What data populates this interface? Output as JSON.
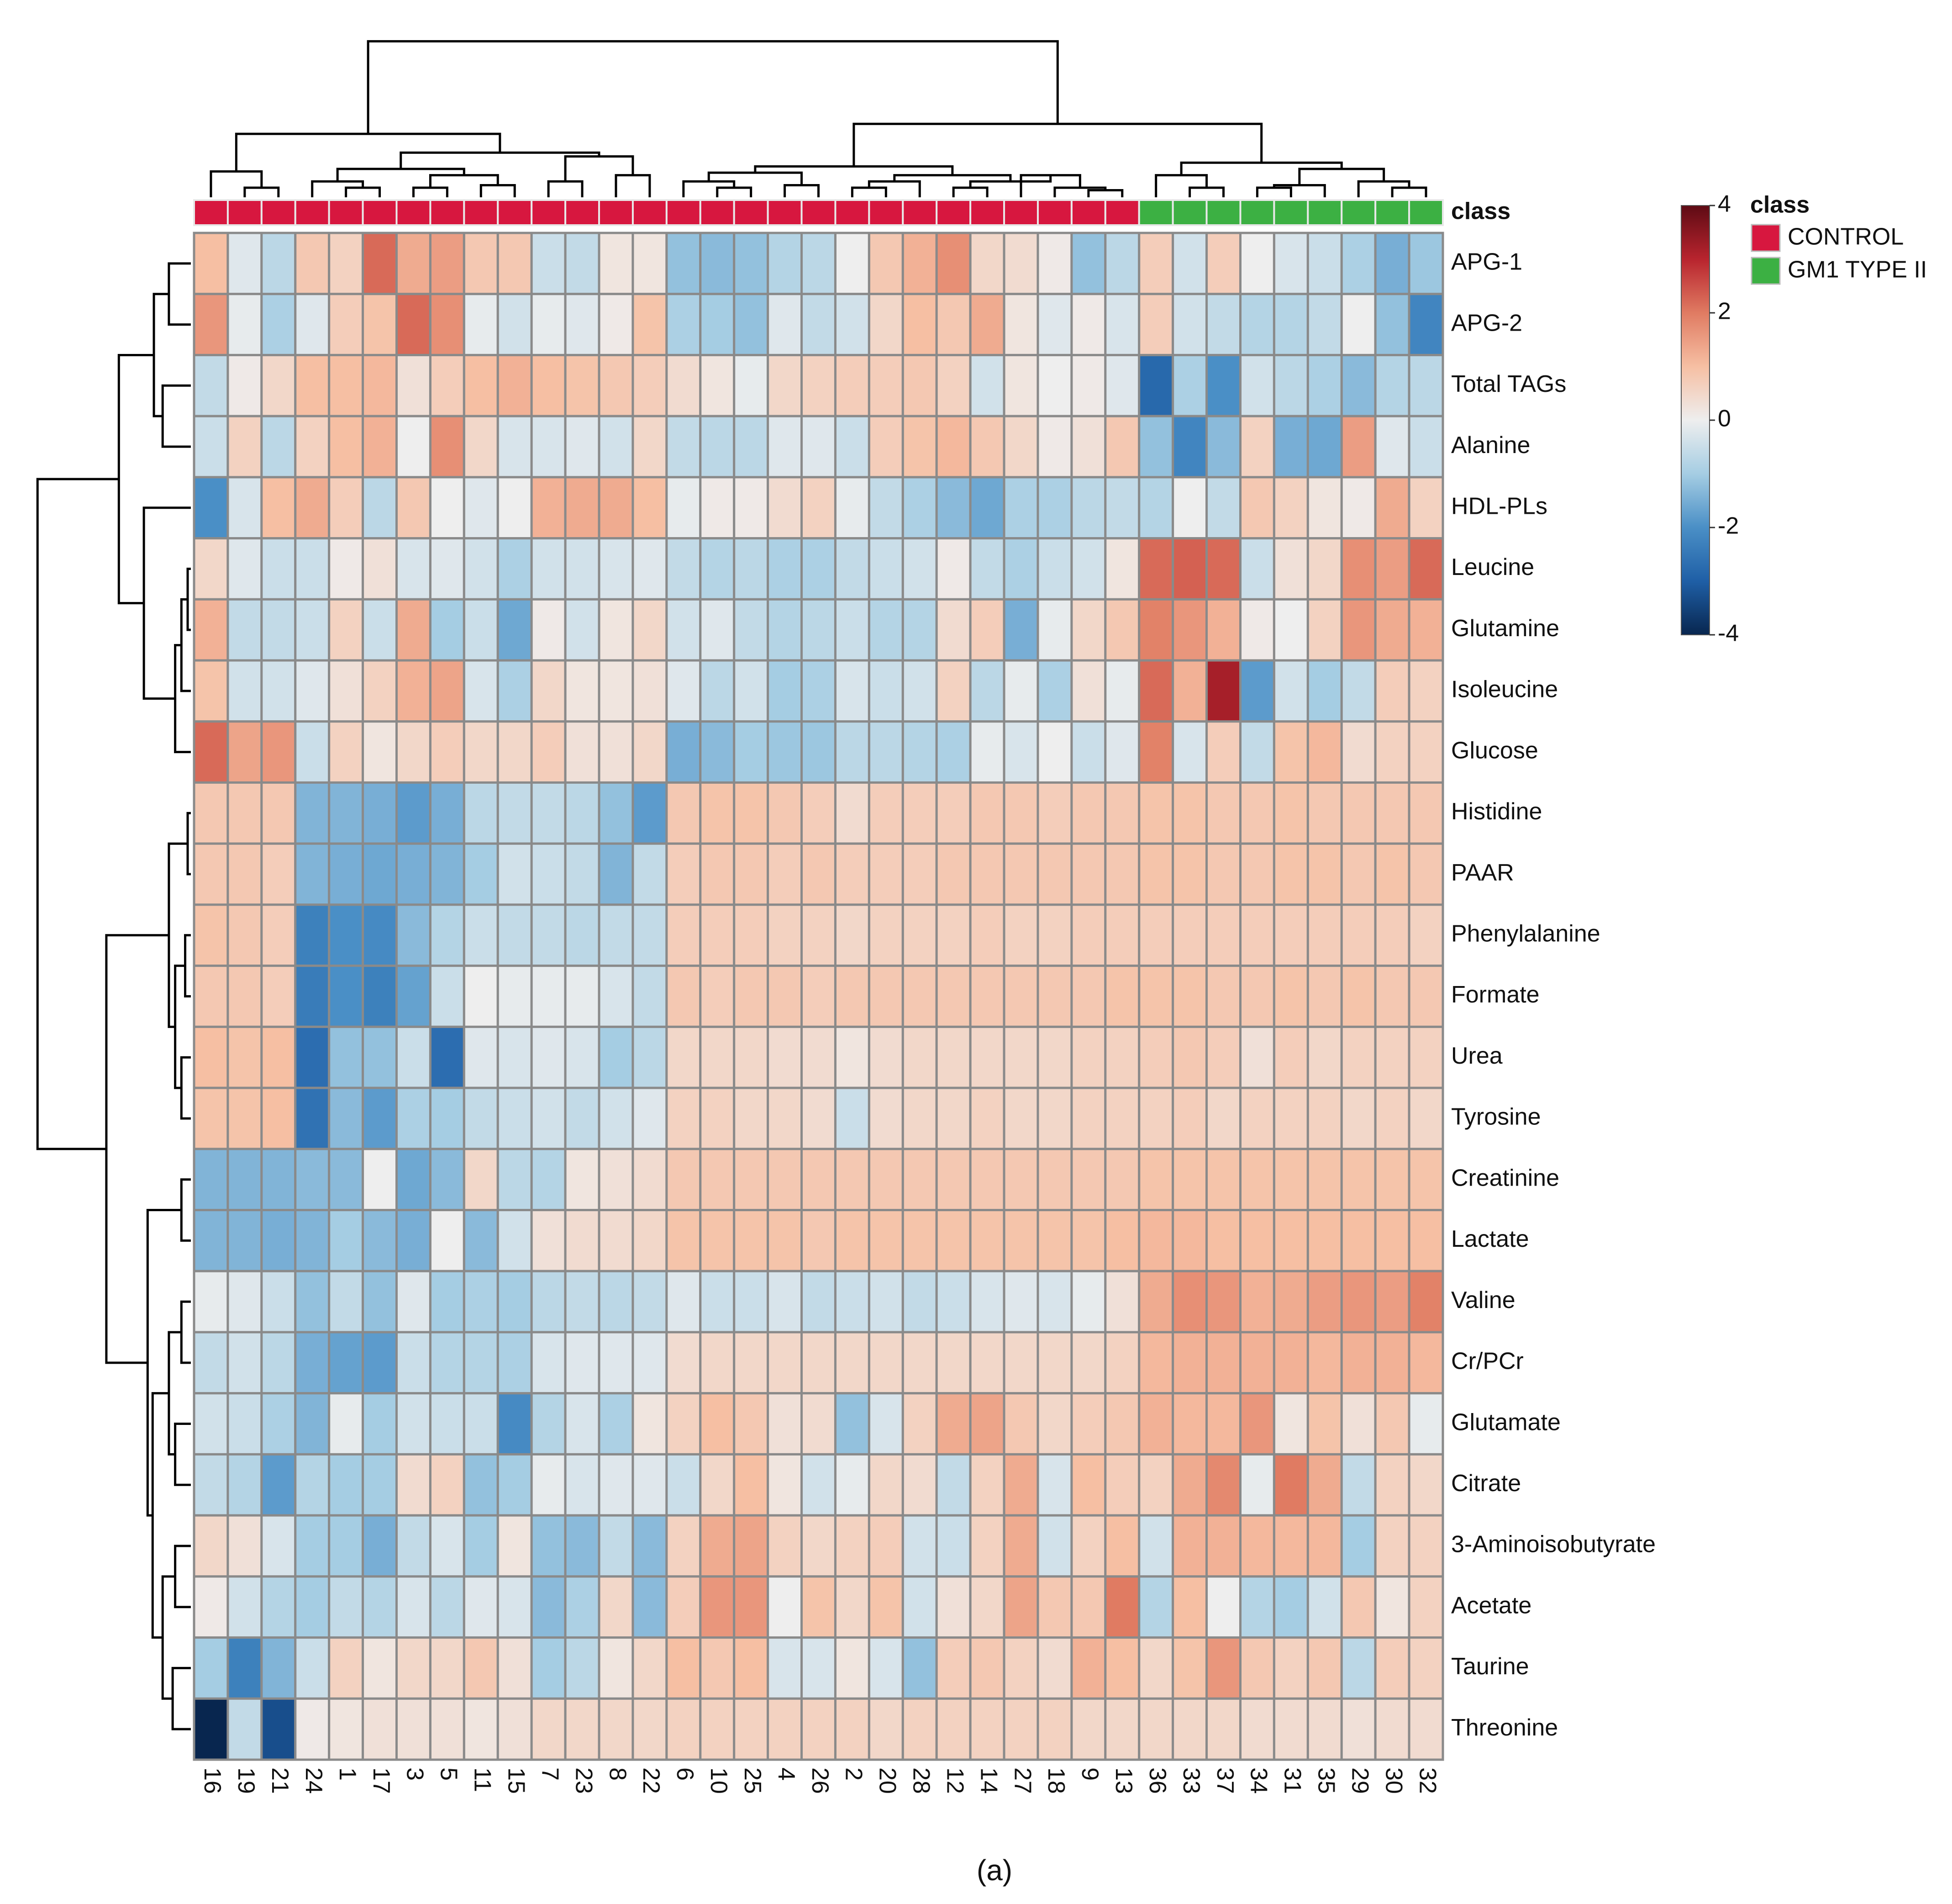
{
  "chart_data": {
    "type": "heatmap",
    "class_label": "class",
    "caption": "(a)",
    "x": [
      "16",
      "19",
      "21",
      "24",
      "1",
      "17",
      "3",
      "5",
      "11",
      "15",
      "7",
      "23",
      "8",
      "22",
      "6",
      "10",
      "25",
      "4",
      "26",
      "2",
      "20",
      "28",
      "12",
      "14",
      "27",
      "18",
      "9",
      "13",
      "36",
      "33",
      "37",
      "34",
      "31",
      "35",
      "29",
      "30",
      "32"
    ],
    "column_class": [
      "CONTROL",
      "CONTROL",
      "CONTROL",
      "CONTROL",
      "CONTROL",
      "CONTROL",
      "CONTROL",
      "CONTROL",
      "CONTROL",
      "CONTROL",
      "CONTROL",
      "CONTROL",
      "CONTROL",
      "CONTROL",
      "CONTROL",
      "CONTROL",
      "CONTROL",
      "CONTROL",
      "CONTROL",
      "CONTROL",
      "CONTROL",
      "CONTROL",
      "CONTROL",
      "CONTROL",
      "CONTROL",
      "CONTROL",
      "CONTROL",
      "CONTROL",
      "GM1 TYPE II",
      "GM1 TYPE II",
      "GM1 TYPE II",
      "GM1 TYPE II",
      "GM1 TYPE II",
      "GM1 TYPE II",
      "GM1 TYPE II",
      "GM1 TYPE II",
      "GM1 TYPE II"
    ],
    "legend": {
      "title": "class",
      "items": [
        {
          "name": "CONTROL",
          "color": "#d7173f"
        },
        {
          "name": "GM1 TYPE II",
          "color": "#3cb043"
        }
      ]
    },
    "y": [
      "APG-1",
      "APG-2",
      "Total TAGs",
      "Alanine",
      "HDL-PLs",
      "Leucine",
      "Glutamine",
      "Isoleucine",
      "Glucose",
      "Histidine",
      "PAAR",
      "Phenylalanine",
      "Formate",
      "Urea",
      "Tyrosine",
      "Creatinine",
      "Lactate",
      "Valine",
      "Cr/PCr",
      "Glutamate",
      "Citrate",
      "3-Aminoisobutyrate",
      "Acetate",
      "Taurine",
      "Threonine"
    ],
    "values": [
      [
        1,
        -0.2,
        -0.7,
        0.8,
        0.6,
        2.2,
        1.3,
        1.5,
        0.8,
        0.8,
        -0.5,
        -0.6,
        0.2,
        0.2,
        -1.2,
        -1.3,
        -1.2,
        -0.8,
        -0.7,
        0,
        0.8,
        1.2,
        1.7,
        0.5,
        0.4,
        0.1,
        -1.2,
        -0.7,
        0.7,
        -0.4,
        0.7,
        0,
        -0.3,
        -0.5,
        -0.9,
        -1.5,
        -1.1
      ],
      [
        1.6,
        -0.1,
        -0.9,
        -0.2,
        0.7,
        0.9,
        2.2,
        1.7,
        -0.1,
        -0.4,
        -0.1,
        -0.2,
        0.1,
        0.9,
        -0.9,
        -1,
        -1.2,
        -0.2,
        -0.6,
        -0.4,
        0.5,
        1,
        0.8,
        1.3,
        0.2,
        -0.2,
        0.1,
        -0.3,
        0.7,
        -0.4,
        -0.6,
        -0.8,
        -0.8,
        -0.6,
        0,
        -1.2,
        -2.2
      ],
      [
        -0.6,
        0.1,
        0.5,
        1,
        1,
        1.1,
        0.3,
        0.7,
        1,
        1.2,
        1,
        0.9,
        0.8,
        0.7,
        0.4,
        0.2,
        -0.1,
        0.5,
        0.6,
        0.7,
        0.7,
        0.8,
        0.6,
        -0.4,
        0.2,
        0,
        0.1,
        -0.2,
        -2.8,
        -0.9,
        -2,
        -0.4,
        -0.7,
        -0.9,
        -1.3,
        -0.8,
        -0.7
      ],
      [
        -0.5,
        0.6,
        -0.7,
        0.6,
        1,
        1.2,
        0,
        1.7,
        0.5,
        -0.3,
        -0.3,
        -0.2,
        -0.4,
        0.5,
        -0.6,
        -0.7,
        -0.7,
        -0.2,
        -0.2,
        -0.5,
        0.7,
        0.9,
        1.1,
        0.8,
        0.5,
        0.1,
        0.3,
        0.8,
        -1.2,
        -2.2,
        -1.3,
        0.6,
        -1.5,
        -1.6,
        1.5,
        -0.2,
        -0.5
      ],
      [
        -2,
        -0.3,
        1,
        1.3,
        0.7,
        -0.7,
        0.8,
        0,
        -0.2,
        0,
        1.2,
        1.3,
        1.3,
        1,
        -0.1,
        0.1,
        0.1,
        0.4,
        0.6,
        -0.1,
        -0.6,
        -0.9,
        -1.3,
        -1.6,
        -0.9,
        -0.9,
        -0.7,
        -0.6,
        -0.8,
        0,
        -0.6,
        0.8,
        0.6,
        0.2,
        0.1,
        1.3,
        0.6
      ],
      [
        0.5,
        -0.2,
        -0.5,
        -0.5,
        0.1,
        0.3,
        -0.3,
        -0.2,
        -0.4,
        -0.9,
        -0.4,
        -0.4,
        -0.3,
        -0.2,
        -0.6,
        -0.8,
        -0.7,
        -0.9,
        -0.9,
        -0.6,
        -0.5,
        -0.4,
        0.1,
        -0.6,
        -0.9,
        -0.5,
        -0.4,
        0.2,
        2.2,
        2.3,
        2.2,
        -0.5,
        0.3,
        0.5,
        1.7,
        1.5,
        2.2
      ],
      [
        1.2,
        -0.6,
        -0.6,
        -0.5,
        0.6,
        -0.5,
        1.3,
        -1,
        -0.5,
        -1.6,
        0.1,
        -0.4,
        0.2,
        0.5,
        -0.4,
        -0.2,
        -0.6,
        -0.8,
        -0.7,
        -0.5,
        -0.8,
        -0.8,
        0.4,
        0.7,
        -1.5,
        -0.1,
        0.5,
        0.8,
        1.9,
        1.6,
        1.2,
        0.1,
        0,
        0.6,
        1.6,
        1.3,
        1.2
      ],
      [
        0.9,
        -0.4,
        -0.4,
        -0.2,
        0.3,
        0.6,
        1.2,
        1.4,
        -0.3,
        -0.9,
        0.5,
        0.2,
        0.2,
        0.3,
        -0.2,
        -0.7,
        -0.4,
        -1,
        -0.9,
        -0.3,
        -0.5,
        -0.4,
        0.6,
        -0.7,
        -0.1,
        -0.9,
        0.3,
        -0.1,
        2.2,
        1.2,
        3.2,
        -1.8,
        -0.4,
        -1,
        -0.6,
        0.7,
        0.6
      ],
      [
        2.2,
        1.4,
        1.6,
        -0.5,
        0.6,
        0.2,
        0.5,
        0.7,
        0.5,
        0.5,
        0.7,
        0.3,
        0.3,
        0.5,
        -1.5,
        -1.3,
        -1,
        -1.1,
        -1.1,
        -0.7,
        -0.7,
        -0.8,
        -0.9,
        -0.1,
        -0.3,
        0,
        -0.5,
        -0.2,
        1.9,
        -0.3,
        0.7,
        -0.6,
        0.9,
        1.1,
        0.4,
        0.6,
        0.6
      ],
      [
        0.8,
        0.8,
        0.8,
        -1.4,
        -1.4,
        -1.5,
        -1.8,
        -1.5,
        -0.7,
        -0.6,
        -0.6,
        -0.7,
        -1.2,
        -1.8,
        0.8,
        0.9,
        0.9,
        0.8,
        0.7,
        0.4,
        0.7,
        0.7,
        0.7,
        0.8,
        0.8,
        0.7,
        0.8,
        0.8,
        0.9,
        0.9,
        0.8,
        0.8,
        0.9,
        0.8,
        0.8,
        0.8,
        0.8
      ],
      [
        0.8,
        0.8,
        0.7,
        -1.4,
        -1.5,
        -1.6,
        -1.5,
        -1.4,
        -1,
        -0.4,
        -0.5,
        -0.6,
        -1.4,
        -0.6,
        0.7,
        0.8,
        0.8,
        0.7,
        0.8,
        0.7,
        0.7,
        0.7,
        0.8,
        0.8,
        0.8,
        0.8,
        0.8,
        0.8,
        0.9,
        0.9,
        0.8,
        0.8,
        0.9,
        0.9,
        0.8,
        0.9,
        0.8
      ],
      [
        0.9,
        0.8,
        0.7,
        -2.3,
        -2,
        -2.1,
        -1.3,
        -0.8,
        -0.5,
        -0.6,
        -0.6,
        -0.7,
        -0.6,
        -0.6,
        0.7,
        0.7,
        0.7,
        0.6,
        0.6,
        0.5,
        0.6,
        0.6,
        0.6,
        0.7,
        0.6,
        0.6,
        0.7,
        0.7,
        0.7,
        0.7,
        0.7,
        0.7,
        0.7,
        0.7,
        0.7,
        0.7,
        0.6
      ],
      [
        0.8,
        0.8,
        0.7,
        -2.4,
        -2,
        -2.3,
        -1.7,
        -0.5,
        0,
        -0.1,
        -0.1,
        -0.1,
        -0.3,
        -0.6,
        0.8,
        0.7,
        0.8,
        0.8,
        0.7,
        0.8,
        0.8,
        0.8,
        0.8,
        0.8,
        0.8,
        0.8,
        0.8,
        0.9,
        0.9,
        0.9,
        0.8,
        0.8,
        0.9,
        0.8,
        0.9,
        0.8,
        0.8
      ],
      [
        1,
        0.9,
        1,
        -2.7,
        -1.2,
        -1.2,
        -0.5,
        -2.7,
        -0.2,
        -0.3,
        -0.2,
        -0.3,
        -1,
        -0.7,
        0.5,
        0.5,
        0.5,
        0.4,
        0.4,
        0.2,
        0.4,
        0.5,
        0.5,
        0.5,
        0.5,
        0.5,
        0.6,
        0.6,
        0.7,
        0.8,
        0.7,
        0.3,
        0.7,
        0.5,
        0.6,
        0.6,
        0.6
      ],
      [
        0.9,
        0.9,
        1,
        -2.6,
        -1.3,
        -1.8,
        -0.9,
        -1,
        -0.6,
        -0.5,
        -0.4,
        -0.6,
        -0.4,
        -0.2,
        0.6,
        0.6,
        0.5,
        0.5,
        0.4,
        -0.5,
        0.4,
        0.5,
        0.5,
        0.6,
        0.5,
        0.5,
        0.6,
        0.6,
        0.6,
        0.7,
        0.5,
        0.6,
        0.6,
        0.6,
        0.5,
        0.6,
        0.5
      ],
      [
        -1.4,
        -1.4,
        -1.4,
        -1.3,
        -1.3,
        0,
        -1.6,
        -1.3,
        0.5,
        -0.7,
        -0.8,
        0.2,
        0.3,
        0.4,
        0.8,
        0.8,
        0.8,
        0.8,
        0.8,
        0.8,
        0.8,
        0.8,
        0.8,
        0.8,
        0.8,
        0.8,
        0.8,
        0.8,
        0.9,
        0.9,
        0.9,
        0.9,
        0.9,
        0.9,
        0.9,
        0.9,
        0.9
      ],
      [
        -1.4,
        -1.4,
        -1.5,
        -1.4,
        -1,
        -1.3,
        -1.5,
        0,
        -1.3,
        -0.4,
        0.3,
        0.4,
        0.4,
        0.5,
        0.9,
        0.9,
        0.9,
        0.9,
        0.8,
        0.9,
        0.9,
        0.9,
        0.9,
        0.9,
        0.9,
        0.9,
        0.9,
        1,
        1.1,
        1.1,
        1,
        1,
        1,
        1,
        1,
        1,
        1
      ],
      [
        -0.1,
        -0.2,
        -0.5,
        -1.2,
        -0.6,
        -1.2,
        -0.2,
        -1,
        -0.9,
        -1,
        -0.7,
        -0.6,
        -0.7,
        -0.6,
        -0.2,
        -0.5,
        -0.5,
        -0.3,
        -0.6,
        -0.5,
        -0.4,
        -0.6,
        -0.5,
        -0.3,
        -0.2,
        -0.3,
        -0.1,
        0.3,
        1.3,
        1.7,
        1.6,
        1.2,
        1.3,
        1.5,
        1.6,
        1.5,
        1.9
      ],
      [
        -0.6,
        -0.4,
        -0.7,
        -1.5,
        -1.7,
        -1.8,
        -0.5,
        -0.8,
        -0.8,
        -0.9,
        -0.3,
        -0.2,
        -0.2,
        -0.2,
        0.4,
        0.5,
        0.5,
        0.5,
        0.5,
        0.5,
        0.5,
        0.5,
        0.5,
        0.5,
        0.5,
        0.5,
        0.5,
        0.6,
        1.1,
        1.2,
        1.2,
        1.2,
        1.2,
        1.1,
        1.2,
        1.2,
        1.1
      ],
      [
        -0.4,
        -0.5,
        -0.9,
        -1.4,
        -0.1,
        -1,
        -0.4,
        -0.5,
        -0.5,
        -2.1,
        -0.8,
        -0.3,
        -0.9,
        0.2,
        0.6,
        1,
        0.8,
        0.3,
        0.4,
        -1.2,
        -0.3,
        0.6,
        1.3,
        1.4,
        0.8,
        0.5,
        0.7,
        0.8,
        1.2,
        1.1,
        1.1,
        1.6,
        0.2,
        0.9,
        0.3,
        0.8,
        -0.1
      ],
      [
        -0.6,
        -0.8,
        -1.8,
        -0.8,
        -1,
        -1,
        0.4,
        0.6,
        -1.2,
        -1,
        -0.1,
        -0.3,
        -0.2,
        -0.2,
        -0.5,
        0.5,
        1,
        0.2,
        -0.4,
        -0.1,
        0.5,
        0.4,
        -0.6,
        0.6,
        1.3,
        -0.3,
        1,
        0.7,
        0.6,
        1.3,
        1.8,
        -0.1,
        2,
        1.3,
        -0.6,
        0.6,
        0.5
      ],
      [
        0.5,
        0.3,
        -0.3,
        -1,
        -1,
        -1.5,
        -0.6,
        -0.3,
        -1,
        0.2,
        -1.2,
        -1.3,
        -0.6,
        -1.3,
        0.6,
        1.3,
        1.4,
        0.6,
        0.5,
        0.6,
        0.7,
        -0.4,
        -0.5,
        0.6,
        1.3,
        -0.4,
        0.6,
        1,
        -0.4,
        1.2,
        1.2,
        1.1,
        1.1,
        1.1,
        -1,
        0.6,
        0.6
      ],
      [
        0.1,
        -0.4,
        -0.8,
        -1,
        -0.6,
        -0.8,
        -0.3,
        -0.7,
        -0.2,
        -0.3,
        -1.3,
        -0.9,
        0.5,
        -1.3,
        0.7,
        1.6,
        1.6,
        0,
        0.9,
        0.5,
        0.9,
        -0.4,
        0.3,
        0.5,
        1.4,
        0.8,
        0.8,
        2,
        -0.8,
        1,
        0,
        -0.8,
        -1,
        -0.4,
        0.8,
        0.2,
        0.6
      ],
      [
        -1,
        -2.3,
        -1.4,
        -0.5,
        0.6,
        0.2,
        0.5,
        0.5,
        0.8,
        0.3,
        -1,
        -0.7,
        0.2,
        0.5,
        1,
        0.8,
        1,
        -0.3,
        -0.3,
        0.2,
        -0.3,
        -1.2,
        0.7,
        0.8,
        0.6,
        0.4,
        1.2,
        1,
        0.5,
        0.9,
        1.6,
        0.8,
        0.6,
        0.8,
        -0.7,
        0.7,
        0.6
      ],
      [
        -4,
        -0.6,
        -3.3,
        0.1,
        0.2,
        0.3,
        0.3,
        0.3,
        0.2,
        0.3,
        0.5,
        0.5,
        0.5,
        0.5,
        0.6,
        0.6,
        0.6,
        0.6,
        0.6,
        0.6,
        0.5,
        0.6,
        0.6,
        0.6,
        0.6,
        0.6,
        0.5,
        0.5,
        0.5,
        0.5,
        0.5,
        0.4,
        0.4,
        0.4,
        0.3,
        0.4,
        0.4
      ]
    ],
    "zlim": [
      -4,
      4
    ],
    "zticks": [
      4,
      2,
      0,
      -2,
      -4
    ],
    "colorscale": [
      "#08264f",
      "#1f5fa6",
      "#4a8fc6",
      "#a5cde3",
      "#eeeeee",
      "#f6bfa3",
      "#e07b62",
      "#b8242e",
      "#5e0b14"
    ],
    "cell_border": "#8a8a8a"
  }
}
